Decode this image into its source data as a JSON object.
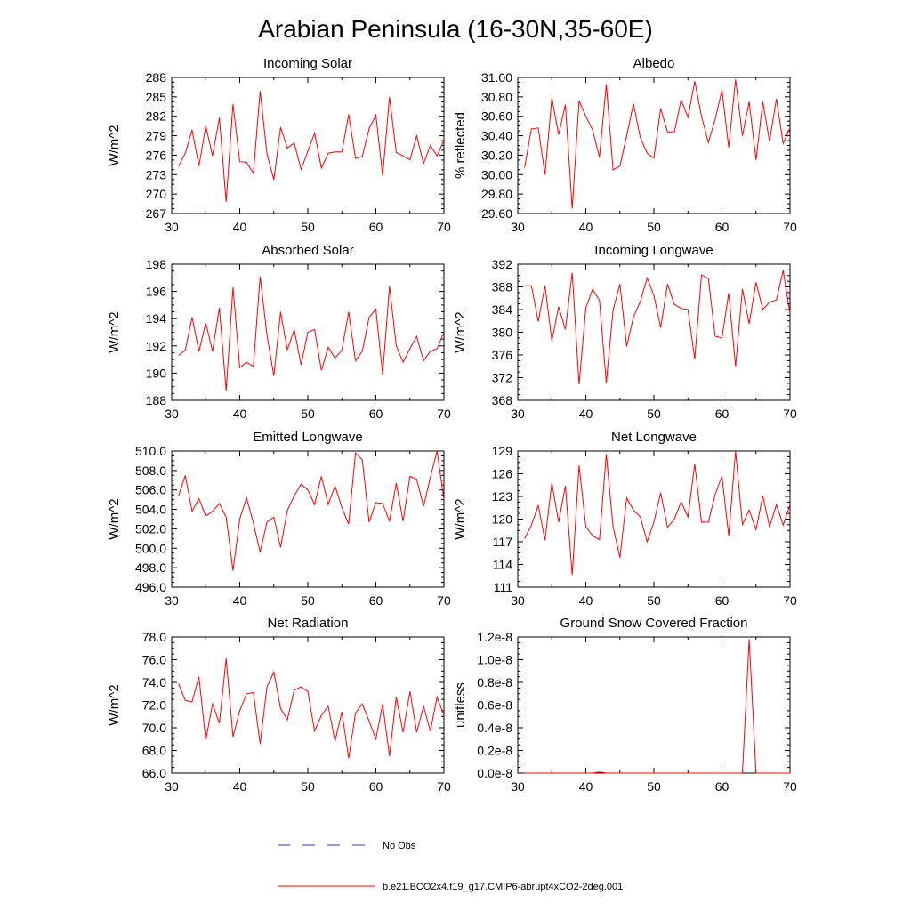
{
  "figure": {
    "title": "Arabian Peninsula (16-30N,35-60E)"
  },
  "legend": [
    {
      "label": "No Obs",
      "color": "#3333cc",
      "style": "dashed"
    },
    {
      "label": "b.e21.BCO2x4.f19_g17.CMIP6-abrupt4xCO2-2deg.001",
      "color": "#ff0000",
      "style": "solid"
    }
  ],
  "chart_data": [
    {
      "type": "line",
      "title": "Incoming Solar",
      "ylabel": "W/m^2",
      "xlim": [
        30,
        70
      ],
      "xticks": [
        "30",
        "40",
        "50",
        "60",
        "70"
      ],
      "ylim": [
        267,
        288
      ],
      "yticks": [
        "267",
        "270",
        "273",
        "276",
        "279",
        "282",
        "285",
        "288"
      ],
      "x": [
        31,
        32,
        33,
        34,
        35,
        36,
        37,
        38,
        39,
        40,
        41,
        42,
        43,
        44,
        45,
        46,
        47,
        48,
        49,
        50,
        51,
        52,
        53,
        54,
        55,
        56,
        57,
        58,
        59,
        60,
        61,
        62,
        63,
        64,
        65,
        66,
        67,
        68,
        69,
        70
      ],
      "series": [
        {
          "name": "b.e21.BCO2x4.f19_g17.CMIP6-abrupt4xCO2-2deg.001",
          "color": "#ff0000",
          "values": [
            274.3,
            276.3,
            279.9,
            274.3,
            280.5,
            275.9,
            281.8,
            268.8,
            283.9,
            275.0,
            274.9,
            273.2,
            285.9,
            276.2,
            272.2,
            280.3,
            277.1,
            277.9,
            273.8,
            276.6,
            279.4,
            274.0,
            276.3,
            276.5,
            276.5,
            282.3,
            275.5,
            275.8,
            280.1,
            282.2,
            272.8,
            285.0,
            276.4,
            275.9,
            275.3,
            279.0,
            274.7,
            277.5,
            275.9,
            278.3
          ]
        }
      ]
    },
    {
      "type": "line",
      "title": "Albedo",
      "ylabel": "% reflected",
      "xlim": [
        30,
        70
      ],
      "xticks": [
        "30",
        "40",
        "50",
        "60",
        "70"
      ],
      "ylim": [
        29.6,
        31.0
      ],
      "yticks": [
        "29.60",
        "29.80",
        "30.00",
        "30.20",
        "30.40",
        "30.60",
        "30.80",
        "31.00"
      ],
      "x": [
        31,
        32,
        33,
        34,
        35,
        36,
        37,
        38,
        39,
        40,
        41,
        42,
        43,
        44,
        45,
        46,
        47,
        48,
        49,
        50,
        51,
        52,
        53,
        54,
        55,
        56,
        57,
        58,
        59,
        60,
        61,
        62,
        63,
        64,
        65,
        66,
        67,
        68,
        69,
        70
      ],
      "series": [
        {
          "name": "b.e21.BCO2x4.f19_g17.CMIP6-abrupt4xCO2-2deg.001",
          "color": "#ff0000",
          "values": [
            30.07,
            30.47,
            30.48,
            30.0,
            30.79,
            30.41,
            30.72,
            29.65,
            30.76,
            30.6,
            30.46,
            30.18,
            30.93,
            30.05,
            30.09,
            30.4,
            30.73,
            30.38,
            30.22,
            30.17,
            30.68,
            30.44,
            30.44,
            30.77,
            30.59,
            30.96,
            30.6,
            30.33,
            30.57,
            30.87,
            30.28,
            30.98,
            30.4,
            30.75,
            30.15,
            30.75,
            30.34,
            30.78,
            30.32,
            30.48
          ]
        }
      ]
    },
    {
      "type": "line",
      "title": "Absorbed Solar",
      "ylabel": "W/m^2",
      "xlim": [
        30,
        70
      ],
      "xticks": [
        "30",
        "40",
        "50",
        "60",
        "70"
      ],
      "ylim": [
        188,
        198
      ],
      "yticks": [
        "188",
        "190",
        "192",
        "194",
        "196",
        "198"
      ],
      "x": [
        31,
        32,
        33,
        34,
        35,
        36,
        37,
        38,
        39,
        40,
        41,
        42,
        43,
        44,
        45,
        46,
        47,
        48,
        49,
        50,
        51,
        52,
        53,
        54,
        55,
        56,
        57,
        58,
        59,
        60,
        61,
        62,
        63,
        64,
        65,
        66,
        67,
        68,
        69,
        70
      ],
      "series": [
        {
          "name": "b.e21.BCO2x4.f19_g17.CMIP6-abrupt4xCO2-2deg.001",
          "color": "#ff0000",
          "values": [
            191.3,
            191.7,
            194.1,
            191.6,
            193.7,
            191.6,
            194.8,
            188.7,
            196.3,
            190.4,
            190.8,
            190.5,
            197.1,
            192.8,
            189.8,
            194.5,
            191.7,
            193.2,
            190.6,
            193.0,
            193.2,
            190.2,
            191.9,
            191.1,
            191.7,
            194.5,
            190.9,
            191.6,
            194.1,
            194.7,
            189.9,
            196.4,
            192.0,
            190.8,
            191.8,
            192.7,
            190.9,
            191.6,
            191.8,
            193.0
          ]
        }
      ]
    },
    {
      "type": "line",
      "title": "Incoming Longwave",
      "ylabel": "W/m^2",
      "xlim": [
        30,
        70
      ],
      "xticks": [
        "30",
        "40",
        "50",
        "60",
        "70"
      ],
      "ylim": [
        368,
        392
      ],
      "yticks": [
        "368",
        "372",
        "376",
        "380",
        "384",
        "388",
        "392"
      ],
      "x": [
        31,
        32,
        33,
        34,
        35,
        36,
        37,
        38,
        39,
        40,
        41,
        42,
        43,
        44,
        45,
        46,
        47,
        48,
        49,
        50,
        51,
        52,
        53,
        54,
        55,
        56,
        57,
        58,
        59,
        60,
        61,
        62,
        63,
        64,
        65,
        66,
        67,
        68,
        69,
        70
      ],
      "series": [
        {
          "name": "b.e21.BCO2x4.f19_g17.CMIP6-abrupt4xCO2-2deg.001",
          "color": "#ff0000",
          "values": [
            388.2,
            388.2,
            381.9,
            388.2,
            378.5,
            384.5,
            380.5,
            390.5,
            370.8,
            384.3,
            387.6,
            385.6,
            371.1,
            383.9,
            388.5,
            377.5,
            382.7,
            385.4,
            389.6,
            386.5,
            380.8,
            388.5,
            384.9,
            384.2,
            384.0,
            375.3,
            390.1,
            389.5,
            379.3,
            379.0,
            386.9,
            374.0,
            387.6,
            381.5,
            388.8,
            384.0,
            385.3,
            385.7,
            390.9,
            383.3
          ]
        }
      ]
    },
    {
      "type": "line",
      "title": "Emitted Longwave",
      "ylabel": "W/m^2",
      "xlim": [
        30,
        70
      ],
      "xticks": [
        "30",
        "40",
        "50",
        "60",
        "70"
      ],
      "ylim": [
        496,
        510
      ],
      "yticks": [
        "496.0",
        "498.0",
        "500.0",
        "502.0",
        "504.0",
        "506.0",
        "508.0",
        "510.0"
      ],
      "x": [
        31,
        32,
        33,
        34,
        35,
        36,
        37,
        38,
        39,
        40,
        41,
        42,
        43,
        44,
        45,
        46,
        47,
        48,
        49,
        50,
        51,
        52,
        53,
        54,
        55,
        56,
        57,
        58,
        59,
        60,
        61,
        62,
        63,
        64,
        65,
        66,
        67,
        68,
        69,
        70
      ],
      "series": [
        {
          "name": "b.e21.BCO2x4.f19_g17.CMIP6-abrupt4xCO2-2deg.001",
          "color": "#ff0000",
          "values": [
            505.4,
            507.5,
            503.8,
            505.1,
            503.3,
            503.8,
            504.6,
            503.2,
            497.7,
            503.0,
            505.2,
            502.6,
            499.6,
            502.7,
            503.2,
            500.1,
            503.9,
            505.4,
            506.6,
            506.0,
            504.5,
            507.4,
            504.5,
            506.4,
            504.2,
            502.5,
            509.8,
            509.1,
            502.7,
            504.7,
            504.6,
            502.8,
            506.7,
            502.8,
            507.4,
            507.1,
            504.3,
            507.3,
            510.0,
            505.0
          ]
        }
      ]
    },
    {
      "type": "line",
      "title": "Net Longwave",
      "ylabel": "W/m^2",
      "xlim": [
        30,
        70
      ],
      "xticks": [
        "30",
        "40",
        "50",
        "60",
        "70"
      ],
      "ylim": [
        111,
        129
      ],
      "yticks": [
        "111",
        "114",
        "117",
        "120",
        "123",
        "126",
        "129"
      ],
      "x": [
        31,
        32,
        33,
        34,
        35,
        36,
        37,
        38,
        39,
        40,
        41,
        42,
        43,
        44,
        45,
        46,
        47,
        48,
        49,
        50,
        51,
        52,
        53,
        54,
        55,
        56,
        57,
        58,
        59,
        60,
        61,
        62,
        63,
        64,
        65,
        66,
        67,
        68,
        69,
        70
      ],
      "series": [
        {
          "name": "b.e21.BCO2x4.f19_g17.CMIP6-abrupt4xCO2-2deg.001",
          "color": "#ff0000",
          "values": [
            117.4,
            119.2,
            121.8,
            117.2,
            124.8,
            119.6,
            124.4,
            112.6,
            127.1,
            119.0,
            117.8,
            117.3,
            128.6,
            119.0,
            114.9,
            122.8,
            121.2,
            120.3,
            117.0,
            119.6,
            123.5,
            118.9,
            120.0,
            122.3,
            120.3,
            127.3,
            119.6,
            119.6,
            123.3,
            125.7,
            117.8,
            129.0,
            119.3,
            121.2,
            118.6,
            123.1,
            119.0,
            121.9,
            119.2,
            121.9
          ]
        }
      ]
    },
    {
      "type": "line",
      "title": "Net Radiation",
      "ylabel": "W/m^2",
      "xlim": [
        30,
        70
      ],
      "xticks": [
        "30",
        "40",
        "50",
        "60",
        "70"
      ],
      "ylim": [
        66,
        78
      ],
      "yticks": [
        "66.0",
        "68.0",
        "70.0",
        "72.0",
        "74.0",
        "76.0",
        "78.0"
      ],
      "x": [
        31,
        32,
        33,
        34,
        35,
        36,
        37,
        38,
        39,
        40,
        41,
        42,
        43,
        44,
        45,
        46,
        47,
        48,
        49,
        50,
        51,
        52,
        53,
        54,
        55,
        56,
        57,
        58,
        59,
        60,
        61,
        62,
        63,
        64,
        65,
        66,
        67,
        68,
        69,
        70
      ],
      "series": [
        {
          "name": "b.e21.BCO2x4.f19_g17.CMIP6-abrupt4xCO2-2deg.001",
          "color": "#ff0000",
          "values": [
            73.9,
            72.4,
            72.3,
            74.5,
            68.9,
            72.1,
            70.4,
            76.1,
            69.2,
            71.5,
            73.0,
            73.1,
            68.6,
            73.6,
            74.9,
            71.7,
            70.7,
            73.3,
            73.6,
            73.2,
            69.7,
            71.1,
            71.9,
            68.8,
            71.4,
            67.3,
            71.3,
            72.1,
            70.6,
            69.0,
            72.1,
            67.5,
            72.7,
            69.6,
            73.2,
            69.6,
            71.9,
            69.7,
            72.7,
            71.1
          ]
        }
      ]
    },
    {
      "type": "line",
      "title": "Ground Snow Covered Fraction",
      "ylabel": "unitless",
      "xlim": [
        30,
        70
      ],
      "xticks": [
        "30",
        "40",
        "50",
        "60",
        "70"
      ],
      "ylim": [
        0,
        1.2e-08
      ],
      "yticks": [
        "0.0e-8",
        "0.2e-8",
        "0.4e-8",
        "0.6e-8",
        "0.8e-8",
        "1.0e-8",
        "1.2e-8"
      ],
      "x": [
        31,
        32,
        33,
        34,
        35,
        36,
        37,
        38,
        39,
        40,
        41,
        42,
        43,
        44,
        45,
        46,
        47,
        48,
        49,
        50,
        51,
        52,
        53,
        54,
        55,
        56,
        57,
        58,
        59,
        60,
        61,
        62,
        63,
        64,
        65,
        66,
        67,
        68,
        69,
        70
      ],
      "series": [
        {
          "name": "b.e21.BCO2x4.f19_g17.CMIP6-abrupt4xCO2-2deg.001",
          "color": "#ff0000",
          "values": [
            0,
            0,
            0,
            0,
            0,
            0,
            0,
            0,
            0,
            0,
            0,
            1e-10,
            0,
            0,
            0,
            0,
            0,
            0,
            0,
            0,
            0,
            0,
            0,
            0,
            0,
            0,
            0,
            0,
            0,
            0,
            0,
            0,
            0,
            1.18e-08,
            0,
            0,
            0,
            0,
            0,
            0
          ]
        }
      ]
    }
  ]
}
